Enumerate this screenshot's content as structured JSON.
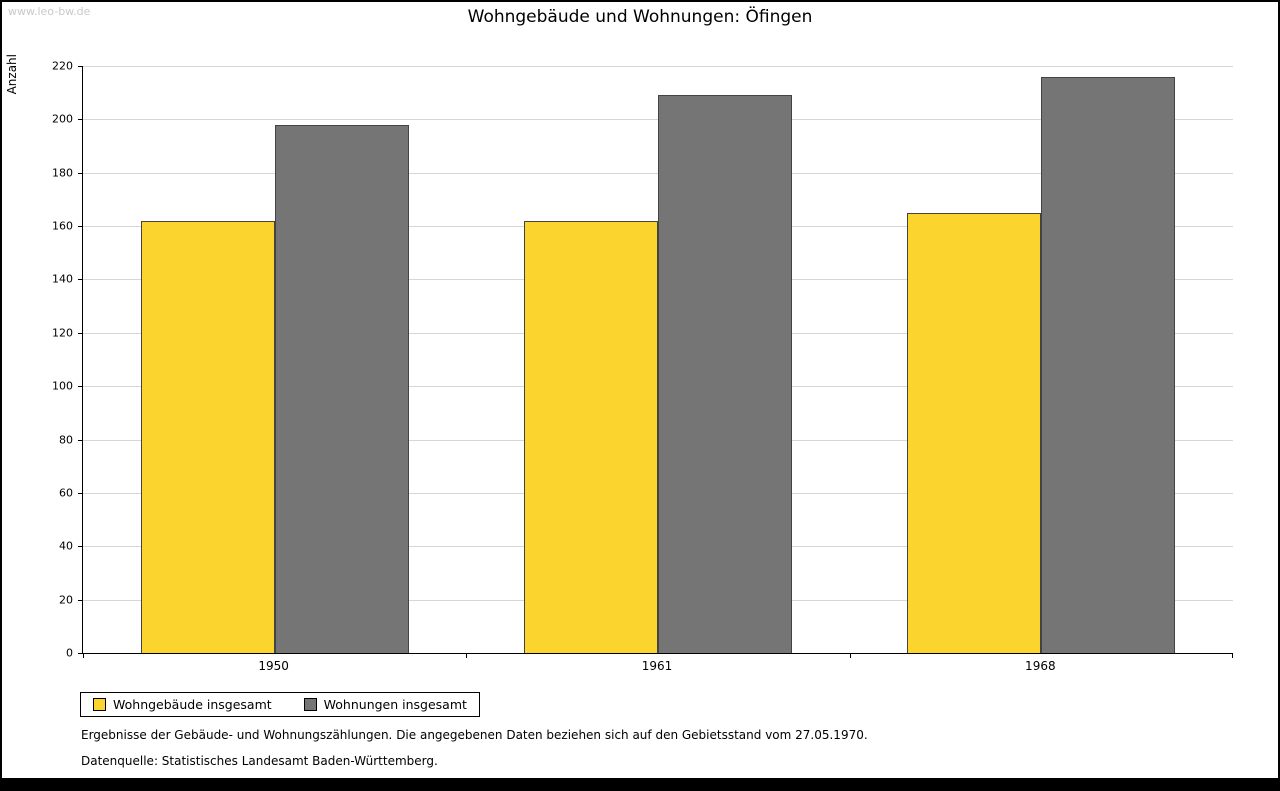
{
  "watermark": "www.leo-bw.de",
  "chart_data": {
    "type": "bar",
    "title": "Wohngebäude und Wohnungen: Öfingen",
    "ylabel": "Anzahl",
    "xlabel": "",
    "categories": [
      "1950",
      "1961",
      "1968"
    ],
    "series": [
      {
        "name": "Wohngebäude insgesamt",
        "color": "#fcd42e",
        "values": [
          162,
          162,
          165
        ]
      },
      {
        "name": "Wohnungen insgesamt",
        "color": "#757575",
        "values": [
          198,
          209,
          216
        ]
      }
    ],
    "ylim": [
      0,
      220
    ],
    "ytick_step": 20,
    "grid": true,
    "legend_position": "bottom-left"
  },
  "footnotes": {
    "line1": "Ergebnisse der Gebäude- und Wohnungszählungen. Die angegebenen Daten beziehen sich auf den Gebietsstand vom 27.05.1970.",
    "line2": "Datenquelle: Statistisches Landesamt Baden-Württemberg."
  }
}
